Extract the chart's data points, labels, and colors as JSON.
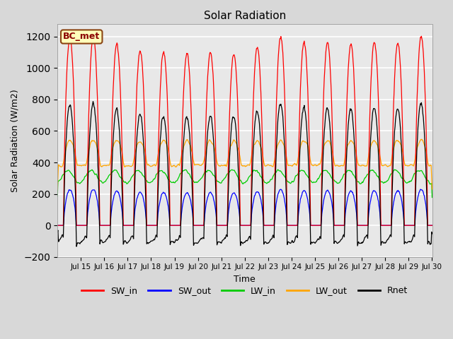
{
  "title": "Solar Radiation",
  "xlabel": "Time",
  "ylabel": "Solar Radiation (W/m2)",
  "ylim": [
    -200,
    1280
  ],
  "yticks": [
    -200,
    0,
    200,
    400,
    600,
    800,
    1000,
    1200
  ],
  "xtick_labels": [
    "Jul 15",
    "Jul 16",
    "Jul 17",
    "Jul 18",
    "Jul 19",
    "Jul 20",
    "Jul 21",
    "Jul 22",
    "Jul 23",
    "Jul 24",
    "Jul 25",
    "Jul 26",
    "Jul 27",
    "Jul 28",
    "Jul 29",
    "Jul 30"
  ],
  "label_text": "BC_met",
  "label_bg": "#FFFFBB",
  "label_border": "#8B4513",
  "sw_in_color": "#FF0000",
  "sw_out_color": "#0000FF",
  "lw_in_color": "#00CC00",
  "lw_out_color": "#FFA500",
  "rnet_color": "#000000",
  "linewidth": 0.9,
  "fig_bg": "#D8D8D8",
  "plot_bg": "#E8E8E8",
  "grid_color": "#FFFFFF"
}
